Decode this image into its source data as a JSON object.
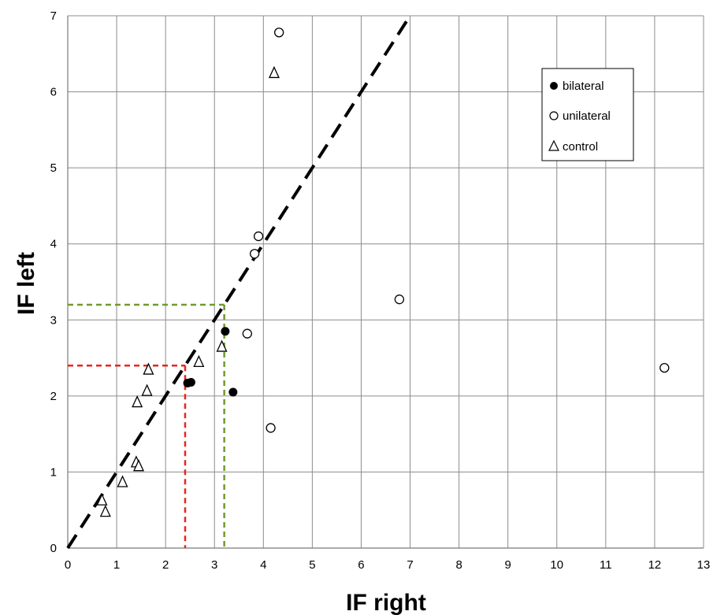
{
  "chart_data": {
    "type": "scatter",
    "xlabel": "IF right",
    "ylabel": "IF left",
    "xlim": [
      0,
      13
    ],
    "ylim": [
      0,
      7
    ],
    "x_ticks": [
      "0",
      "1",
      "2",
      "3",
      "4",
      "5",
      "6",
      "7",
      "8",
      "9",
      "10",
      "11",
      "12",
      "13"
    ],
    "y_ticks": [
      "0",
      "1",
      "2",
      "3",
      "4",
      "5",
      "6",
      "7"
    ],
    "grid": true,
    "legend_position": "top-right",
    "series": [
      {
        "name": "bilateral",
        "marker": "filled-circle",
        "color": "#000000",
        "points": [
          {
            "x": 2.45,
            "y": 2.17
          },
          {
            "x": 2.52,
            "y": 2.18
          },
          {
            "x": 3.22,
            "y": 2.85
          },
          {
            "x": 3.38,
            "y": 2.05
          }
        ]
      },
      {
        "name": "unilateral",
        "marker": "open-circle",
        "color": "#000000",
        "points": [
          {
            "x": 4.32,
            "y": 6.78
          },
          {
            "x": 3.9,
            "y": 4.1
          },
          {
            "x": 3.82,
            "y": 3.87
          },
          {
            "x": 3.67,
            "y": 2.82
          },
          {
            "x": 4.15,
            "y": 1.58
          },
          {
            "x": 6.78,
            "y": 3.27
          },
          {
            "x": 12.2,
            "y": 2.37
          }
        ]
      },
      {
        "name": "control",
        "marker": "open-triangle",
        "color": "#000000",
        "points": [
          {
            "x": 4.22,
            "y": 6.25
          },
          {
            "x": 3.15,
            "y": 2.65
          },
          {
            "x": 2.68,
            "y": 2.45
          },
          {
            "x": 1.65,
            "y": 2.35
          },
          {
            "x": 1.62,
            "y": 2.07
          },
          {
            "x": 1.42,
            "y": 1.92
          },
          {
            "x": 1.4,
            "y": 1.13
          },
          {
            "x": 1.45,
            "y": 1.08
          },
          {
            "x": 1.12,
            "y": 0.87
          },
          {
            "x": 0.7,
            "y": 0.63
          },
          {
            "x": 0.77,
            "y": 0.48
          }
        ]
      }
    ],
    "identity_line": {
      "x": [
        0,
        7
      ],
      "y": [
        0,
        7
      ],
      "style": "dashed",
      "color": "#000000"
    },
    "reference_lines": [
      {
        "color": "#e8251f",
        "x": 2.4,
        "y": 2.4,
        "style": "dashed"
      },
      {
        "color": "#6f9a2e",
        "x": 3.2,
        "y": 3.2,
        "style": "dashed"
      }
    ]
  }
}
